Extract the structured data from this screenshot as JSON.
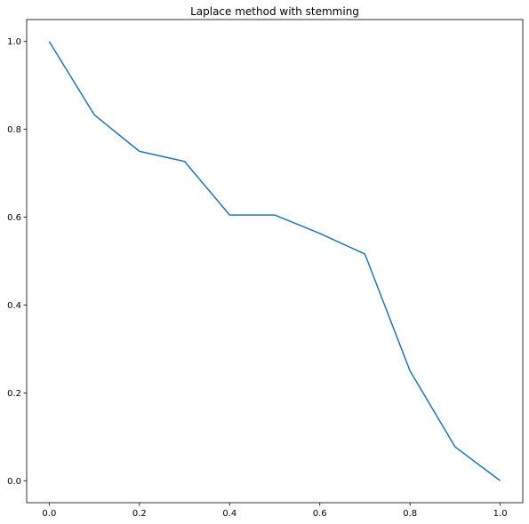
{
  "chart_data": {
    "type": "line",
    "title": "Laplace method with stemming",
    "xlabel": "",
    "ylabel": "",
    "xlim": [
      -0.05,
      1.05
    ],
    "ylim": [
      -0.05,
      1.05
    ],
    "xticks": [
      "0.0",
      "0.2",
      "0.4",
      "0.6",
      "0.8",
      "1.0"
    ],
    "yticks": [
      "0.0",
      "0.2",
      "0.4",
      "0.6",
      "0.8",
      "1.0"
    ],
    "grid": false,
    "series": [
      {
        "color": "#1f77b4",
        "x": [
          0.0,
          0.1,
          0.2,
          0.3,
          0.4,
          0.5,
          0.6,
          0.7,
          0.8,
          0.9,
          1.0
        ],
        "y": [
          1.0,
          0.833,
          0.75,
          0.727,
          0.605,
          0.605,
          0.563,
          0.516,
          0.25,
          0.077,
          0.0
        ]
      }
    ]
  }
}
